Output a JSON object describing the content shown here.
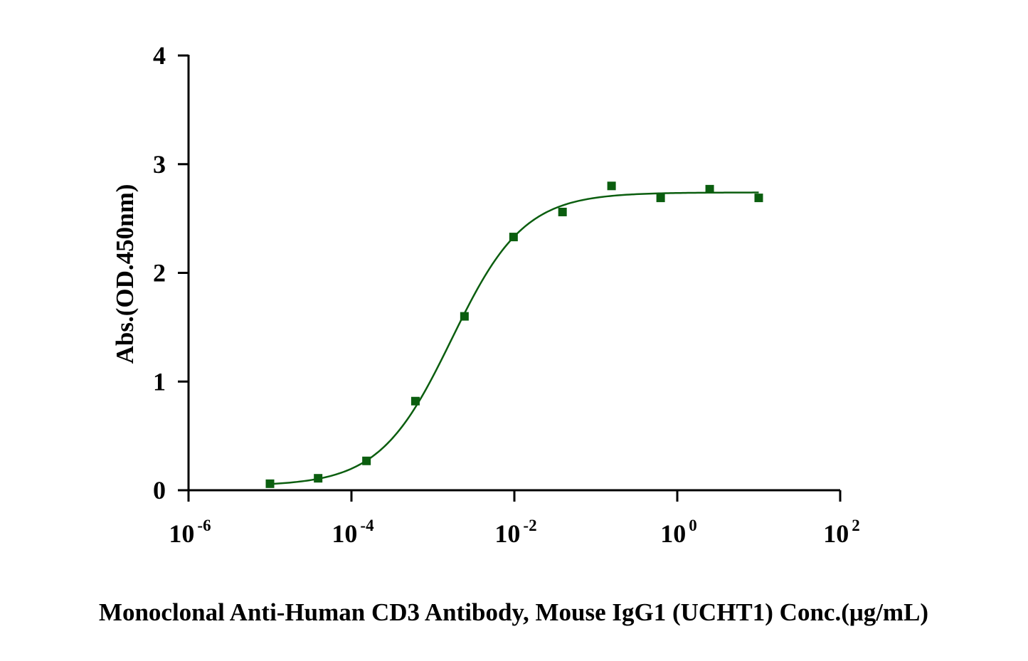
{
  "chart_data": {
    "type": "scatter",
    "title": "",
    "xlabel": "Monoclonal Anti-Human CD3 Antibody, Mouse IgG1 (UCHT1) Conc.(μg/mL)",
    "ylabel": "Abs.(OD.450nm)",
    "x_scale": "log",
    "xlim": [
      1e-06,
      100
    ],
    "ylim": [
      0,
      4
    ],
    "grid": false,
    "legend": "none",
    "x_ticks": [
      {
        "base": "10",
        "exp": "-6",
        "value": 1e-06
      },
      {
        "base": "10",
        "exp": "-4",
        "value": 0.0001
      },
      {
        "base": "10",
        "exp": "-2",
        "value": 0.01
      },
      {
        "base": "10",
        "exp": "0",
        "value": 1
      },
      {
        "base": "10",
        "exp": "2",
        "value": 100
      }
    ],
    "y_ticks": [
      "0",
      "1",
      "2",
      "3",
      "4"
    ],
    "series": [
      {
        "color": "#0b5e0f",
        "marker": "square",
        "fit": "4PL sigmoid",
        "x": [
          1e-05,
          3.9e-05,
          0.000153,
          0.00061,
          0.00244,
          0.00977,
          0.039,
          0.156,
          0.625,
          2.5,
          10
        ],
        "y": [
          0.06,
          0.11,
          0.27,
          0.82,
          1.6,
          2.33,
          2.56,
          2.8,
          2.69,
          2.77,
          2.69
        ]
      }
    ],
    "fit_params": {
      "bottom": 0.04,
      "top": 2.74,
      "ec50": 0.0017,
      "hill": 0.98
    }
  }
}
